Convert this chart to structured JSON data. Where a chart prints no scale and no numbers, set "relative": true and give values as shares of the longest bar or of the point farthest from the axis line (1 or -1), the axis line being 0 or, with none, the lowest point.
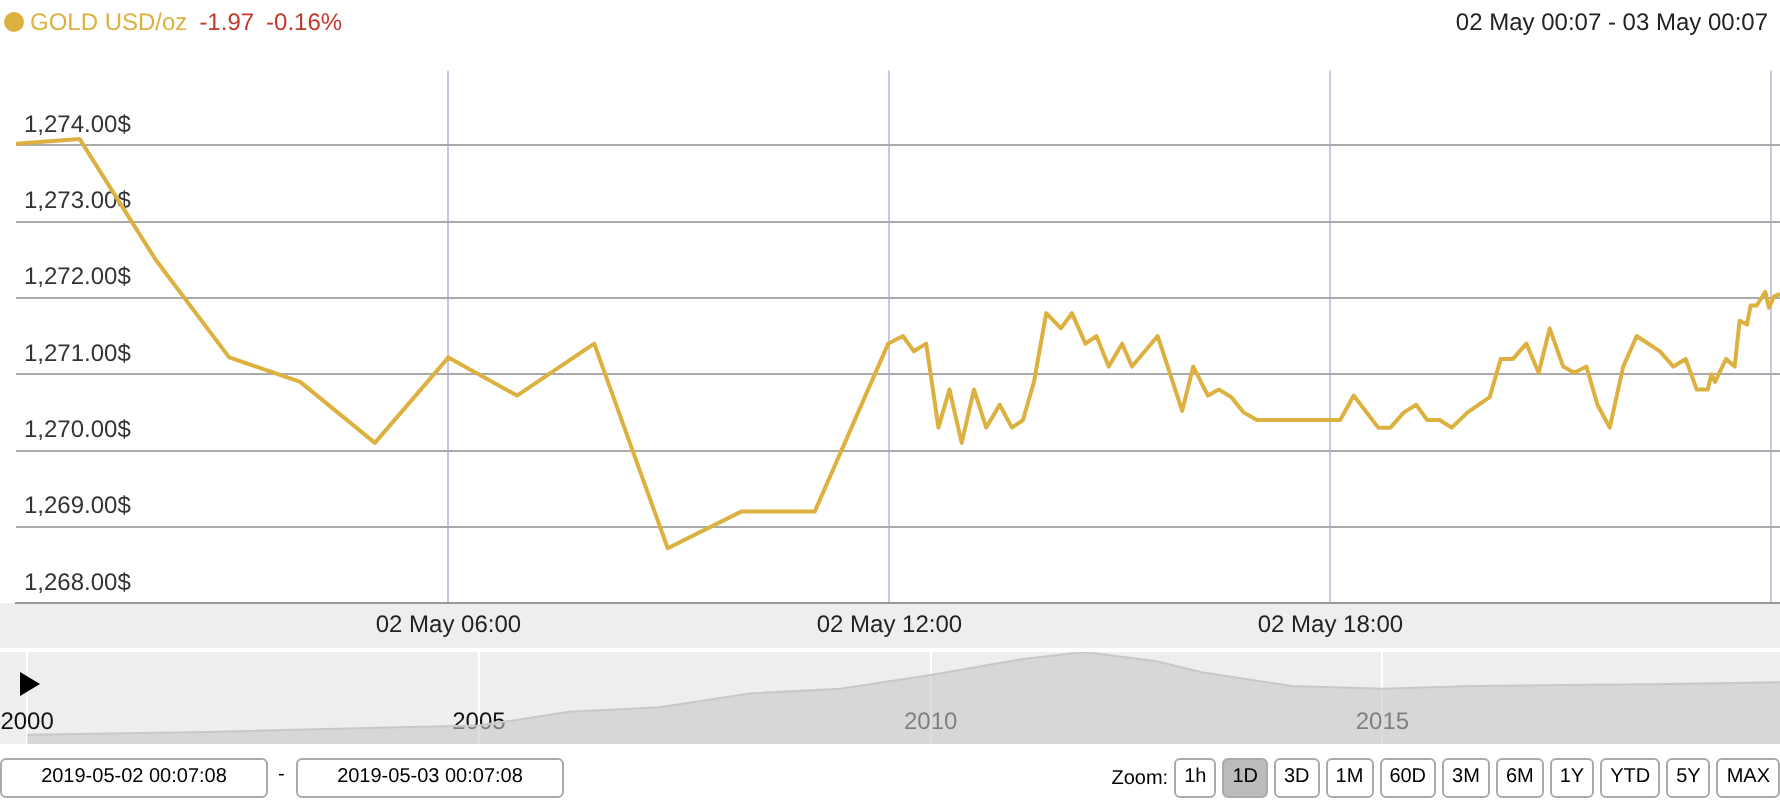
{
  "chart_data": [
    {
      "type": "line",
      "legend": "top left",
      "grid": true,
      "marker": "none",
      "line_style": "solid",
      "annotations": [
        "-1.97",
        "-0.16%",
        "02 May 00:07 - 03 May 00:07"
      ],
      "xlim": [
        "--05-02T00:07",
        "--05-03T00:07"
      ],
      "xticks": [
        {
          "value": "--05-02T06:00",
          "label": "02 May 06:00"
        },
        {
          "value": "--05-02T12:00",
          "label": "02 May 12:00"
        },
        {
          "value": "--05-02T18:00",
          "label": "02 May 18:00"
        },
        {
          "value": "--05-03T00:00",
          "label": null
        }
      ],
      "ylim": [
        1268,
        1274.98
      ],
      "yticks": [
        {
          "value": 1268,
          "label": "1,268.00$"
        },
        {
          "value": 1269,
          "label": "1,269.00$"
        },
        {
          "value": 1270,
          "label": "1,270.00$"
        },
        {
          "value": 1271,
          "label": "1,271.00$"
        },
        {
          "value": 1272,
          "label": "1,272.00$"
        },
        {
          "value": 1273,
          "label": "1,273.00$"
        },
        {
          "value": 1274,
          "label": "1,274.00$"
        }
      ],
      "series": [
        {
          "name": "GOLD USD/oz",
          "color": "#dcb13f",
          "x": [
            "--05-02T00:07",
            "--05-02T00:59",
            "--05-02T02:01",
            "--05-02T03:01",
            "--05-02T03:59",
            "--05-02T05:00",
            "--05-02T06:00",
            "--05-02T06:56",
            "--05-02T07:59",
            "--05-02T08:59",
            "--05-02T09:59",
            "--05-02T10:59",
            "--05-02T11:59",
            "--05-02T12:11",
            "--05-02T12:20",
            "--05-02T12:30",
            "--05-02T12:40",
            "--05-02T12:49",
            "--05-02T12:59",
            "--05-02T13:09",
            "--05-02T13:19",
            "--05-02T13:30",
            "--05-02T13:40",
            "--05-02T13:49",
            "--05-02T13:58",
            "--05-02T14:08",
            "--05-02T14:20",
            "--05-02T14:29",
            "--05-02T14:40",
            "--05-02T14:49",
            "--05-02T14:59",
            "--05-02T15:10",
            "--05-02T15:18",
            "--05-02T15:39",
            "--05-02T15:59",
            "--05-02T16:08",
            "--05-02T16:20",
            "--05-02T16:29",
            "--05-02T16:39",
            "--05-02T16:49",
            "--05-02T17:00",
            "--05-02T18:08",
            "--05-02T18:19",
            "--05-02T18:39",
            "--05-02T18:49",
            "--05-02T19:00",
            "--05-02T19:10",
            "--05-02T19:19",
            "--05-02T19:29",
            "--05-02T19:39",
            "--05-02T19:52",
            "--05-02T20:10",
            "--05-02T20:19",
            "--05-02T20:29",
            "--05-02T20:40",
            "--05-02T20:50",
            "--05-02T20:59",
            "--05-02T21:10",
            "--05-02T21:19",
            "--05-02T21:29",
            "--05-02T21:38",
            "--05-02T21:48",
            "--05-02T21:59",
            "--05-02T22:10",
            "--05-02T22:29",
            "--05-02T22:40",
            "--05-02T22:50",
            "--05-02T22:59",
            "--05-02T23:08",
            "--05-02T23:11",
            "--05-02T23:14",
            "--05-02T23:19",
            "--05-02T23:23",
            "--05-02T23:30",
            "--05-02T23:34",
            "--05-02T23:40",
            "--05-02T23:43",
            "--05-02T23:48",
            "--05-02T23:55",
            "--05-02T23:58",
            "--05-03T00:02",
            "--05-03T00:07"
          ],
          "values": [
            1274.02,
            1274.08,
            1272.5,
            1271.22,
            1270.9,
            1270.1,
            1271.22,
            1270.72,
            1271.4,
            1268.72,
            1269.2,
            1269.2,
            1271.4,
            1271.5,
            1271.3,
            1271.4,
            1270.3,
            1270.8,
            1270.1,
            1270.8,
            1270.3,
            1270.6,
            1270.3,
            1270.4,
            1270.9,
            1271.8,
            1271.6,
            1271.8,
            1271.4,
            1271.5,
            1271.1,
            1271.4,
            1271.1,
            1271.5,
            1270.52,
            1271.1,
            1270.72,
            1270.8,
            1270.7,
            1270.5,
            1270.4,
            1270.4,
            1270.72,
            1270.3,
            1270.3,
            1270.5,
            1270.6,
            1270.4,
            1270.4,
            1270.3,
            1270.5,
            1270.7,
            1271.2,
            1271.2,
            1271.4,
            1271.02,
            1271.6,
            1271.1,
            1271.02,
            1271.1,
            1270.6,
            1270.3,
            1271.1,
            1271.5,
            1271.3,
            1271.1,
            1271.2,
            1270.8,
            1270.8,
            1271.0,
            1270.9,
            1271.07,
            1271.2,
            1271.1,
            1271.7,
            1271.65,
            1271.9,
            1271.9,
            1272.08,
            1271.87,
            1272.02,
            1272.05
          ]
        }
      ]
    },
    {
      "type": "area",
      "relative": true,
      "grid": "x",
      "marker": "none",
      "annotations": [
        "2019-05-02 00:07:08",
        "-",
        "2019-05-03 00:07:08",
        "Zoom:",
        "1h",
        "1D",
        "3D",
        "1M",
        "60D",
        "3M",
        "6M",
        "1Y",
        "YTD",
        "5Y",
        "MAX"
      ],
      "xlim": [
        1999.7,
        2019.4
      ],
      "xticks": [
        2000,
        2005,
        2010,
        2015
      ],
      "series": [
        {
          "color": "#c8c8c8",
          "x": [
            2000,
            2002,
            2004,
            2005,
            2006,
            2007,
            2008,
            2009,
            2010,
            2011,
            2011.7,
            2012.5,
            2013,
            2014,
            2015,
            2016,
            2017,
            2018,
            2019.4
          ],
          "values": [
            0.1,
            0.13,
            0.18,
            0.2,
            0.35,
            0.4,
            0.55,
            0.6,
            0.75,
            0.92,
            1,
            0.9,
            0.78,
            0.63,
            0.6,
            0.63,
            0.64,
            0.65,
            0.67
          ]
        }
      ]
    }
  ]
}
